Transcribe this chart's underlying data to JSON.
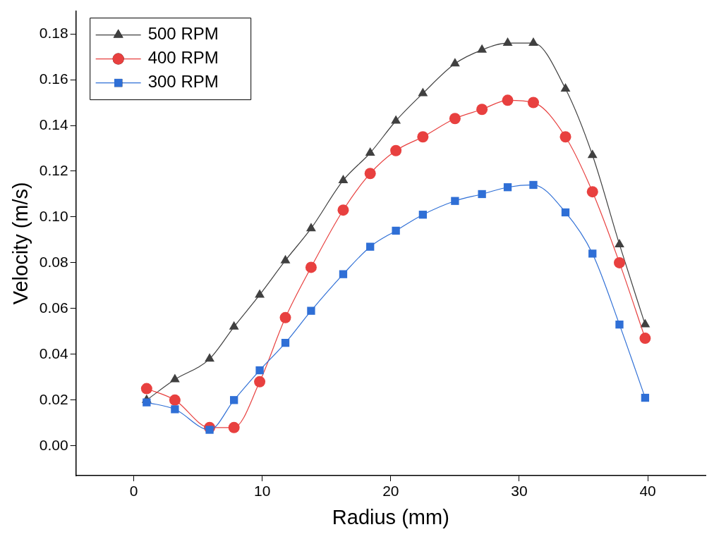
{
  "chart_data": {
    "type": "line",
    "xlabel": "Radius (mm)",
    "ylabel": "Velocity (m/s)",
    "x": [
      1.0,
      3.2,
      5.9,
      7.8,
      9.8,
      11.8,
      13.8,
      16.3,
      18.4,
      20.4,
      22.5,
      25.0,
      27.1,
      29.1,
      31.1,
      33.6,
      35.7,
      37.8,
      39.8
    ],
    "series": [
      {
        "name": "500 RPM",
        "color": "#404040",
        "marker": "triangle",
        "values": [
          0.02,
          0.029,
          0.038,
          0.052,
          0.066,
          0.081,
          0.095,
          0.116,
          0.128,
          0.142,
          0.154,
          0.167,
          0.173,
          0.176,
          0.176,
          0.156,
          0.127,
          0.088,
          0.053
        ]
      },
      {
        "name": "400 RPM",
        "color": "#e8403f",
        "marker": "circle",
        "values": [
          0.025,
          0.02,
          0.008,
          0.008,
          0.028,
          0.056,
          0.078,
          0.103,
          0.119,
          0.129,
          0.135,
          0.143,
          0.147,
          0.151,
          0.15,
          0.135,
          0.111,
          0.08,
          0.047
        ]
      },
      {
        "name": "300 RPM",
        "color": "#2f6fd6",
        "marker": "square",
        "values": [
          0.019,
          0.016,
          0.007,
          0.02,
          0.033,
          0.045,
          0.059,
          0.075,
          0.087,
          0.094,
          0.101,
          0.107,
          0.11,
          0.113,
          0.114,
          0.102,
          0.084,
          0.053,
          0.021
        ]
      }
    ],
    "xlim": [
      -4.5,
      44.5
    ],
    "xticks": [
      0,
      10,
      20,
      30,
      40
    ],
    "ylim": [
      -0.013,
      0.19
    ],
    "yticks": [
      {
        "value": 0,
        "label": "0.00"
      },
      {
        "value": 0.02,
        "label": "0.02"
      },
      {
        "value": 0.04,
        "label": "0.04"
      },
      {
        "value": 0.06,
        "label": "0.06"
      },
      {
        "value": 0.08,
        "label": "0.08"
      },
      {
        "value": 0.1,
        "label": "0.10"
      },
      {
        "value": 0.12,
        "label": "0.12"
      },
      {
        "value": 0.14,
        "label": "0.14"
      },
      {
        "value": 0.16,
        "label": "0.16"
      },
      {
        "value": 0.18,
        "label": "0.18"
      }
    ],
    "grid": false,
    "legend": "top left",
    "line_style": "solid"
  }
}
